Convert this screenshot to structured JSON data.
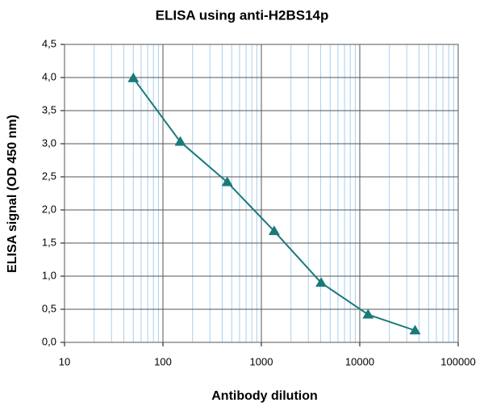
{
  "chart_data": {
    "type": "line",
    "title": "ELISA using anti-H2BS14p",
    "x_label": "Antibody dilution",
    "y_label": "ELISA signal (OD 450 nm)",
    "x_scale": "log",
    "x": [
      50,
      150,
      450,
      1350,
      4050,
      12150,
      36450
    ],
    "series": [
      {
        "name": "anti-H2BS14p",
        "color": "#1a7a7a",
        "values": [
          3.99,
          3.03,
          2.42,
          1.68,
          0.9,
          0.42,
          0.18
        ]
      }
    ],
    "xlim": [
      10,
      100000
    ],
    "xticks": [
      10,
      100,
      1000,
      10000,
      100000
    ],
    "xminorticks": [
      20,
      30,
      40,
      50,
      60,
      70,
      80,
      90,
      200,
      300,
      400,
      500,
      600,
      700,
      800,
      900,
      2000,
      3000,
      4000,
      5000,
      6000,
      7000,
      8000,
      9000,
      20000,
      30000,
      40000,
      50000,
      60000,
      70000,
      80000,
      90000
    ],
    "ylim": [
      0,
      4.5
    ],
    "yticks": [
      {
        "value": 0,
        "label": "0,0"
      },
      {
        "value": 0.5,
        "label": "0,5"
      },
      {
        "value": 1,
        "label": "1,0"
      },
      {
        "value": 1.5,
        "label": "1,5"
      },
      {
        "value": 2,
        "label": "2,0"
      },
      {
        "value": 2.5,
        "label": "2,5"
      },
      {
        "value": 3,
        "label": "3,0"
      },
      {
        "value": 3.5,
        "label": "3,5"
      },
      {
        "value": 4,
        "label": "4,0"
      },
      {
        "value": 4.5,
        "label": "4,5"
      }
    ],
    "grid": true,
    "minor_grid_color": "#a8d0ee",
    "major_grid_color": "#555555"
  }
}
